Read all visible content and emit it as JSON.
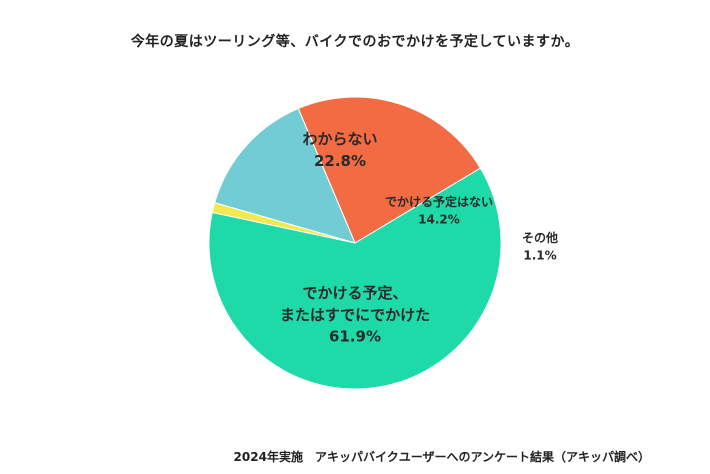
{
  "chart_data": {
    "type": "pie",
    "title": "今年の夏はツーリング等、バイクでのおでかけを予定していますか。",
    "slices": [
      {
        "label": "わからない",
        "value": 22.8,
        "value_label": "22.8%",
        "color": "#f26b43"
      },
      {
        "label": "でかける予定はない",
        "value": 14.2,
        "value_label": "14.2%",
        "color": "#72ccd3"
      },
      {
        "label": "その他",
        "value": 1.1,
        "value_label": "1.1%",
        "color": "#f2e94e"
      },
      {
        "label": "でかける予定、\nまたはすでにでかけた",
        "value": 61.9,
        "value_label": "61.9%",
        "color": "#1ed9a8"
      }
    ],
    "footer": "2024年実施　アキッパバイクユーザーへのアンケート結果（アキッパ調べ）"
  }
}
